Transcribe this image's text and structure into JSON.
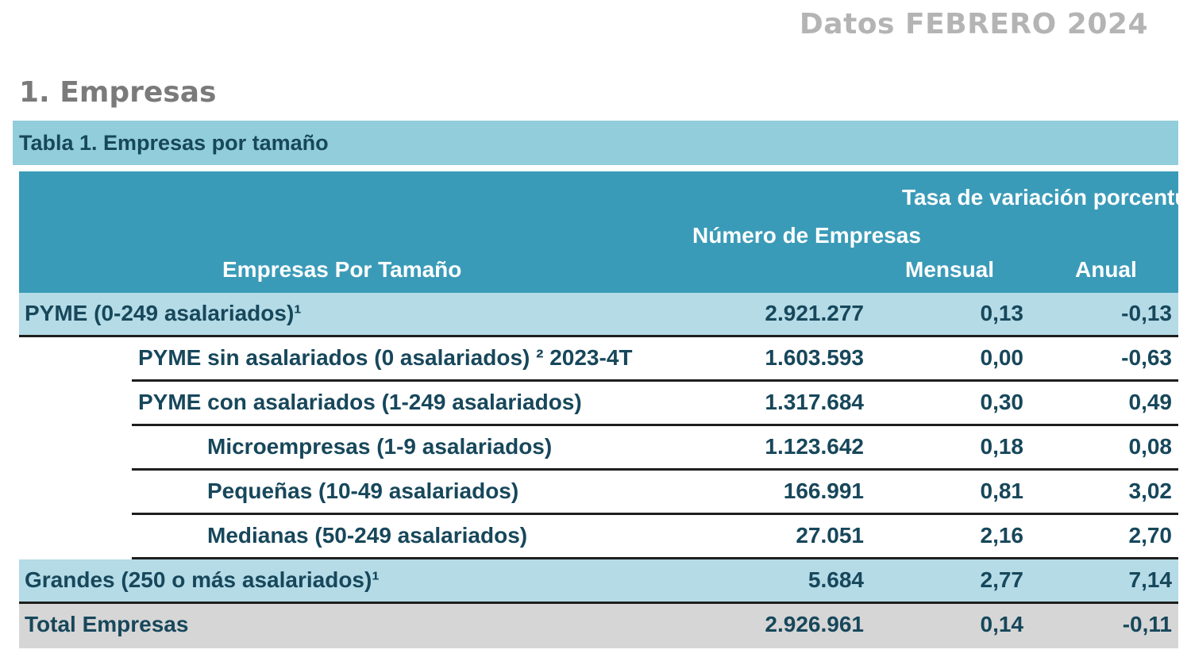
{
  "header": {
    "date_title": "Datos FEBRERO 2024"
  },
  "section": {
    "title": "1. Empresas"
  },
  "table": {
    "caption": "Tabla 1. Empresas por tamaño",
    "headers": {
      "empresas_por_tamano": "Empresas Por Tamaño",
      "numero_de_empresas": "Número de Empresas",
      "tasa_variacion": "Tasa de variación porcentual",
      "mensual": "Mensual",
      "anual": "Anual"
    },
    "rows": [
      {
        "label": "PYME (0-249 asalariados)¹",
        "numero": "2.921.277",
        "mensual": "0,13",
        "anual": "-0,13"
      },
      {
        "label": "PYME sin asalariados (0 asalariados) ² 2023-4T",
        "numero": "1.603.593",
        "mensual": "0,00",
        "anual": "-0,63"
      },
      {
        "label": "PYME con asalariados (1-249 asalariados)",
        "numero": "1.317.684",
        "mensual": "0,30",
        "anual": "0,49"
      },
      {
        "label": "Microempresas (1-9 asalariados)",
        "numero": "1.123.642",
        "mensual": "0,18",
        "anual": "0,08"
      },
      {
        "label": "Pequeñas (10-49 asalariados)",
        "numero": "166.991",
        "mensual": "0,81",
        "anual": "3,02"
      },
      {
        "label": "Medianas (50-249 asalariados)",
        "numero": "27.051",
        "mensual": "2,16",
        "anual": "2,70"
      },
      {
        "label": "Grandes (250 o más asalariados)¹",
        "numero": "5.684",
        "mensual": "2,77",
        "anual": "7,14"
      },
      {
        "label": "Total Empresas",
        "numero": "2.926.961",
        "mensual": "0,14",
        "anual": "-0,11"
      }
    ]
  }
}
